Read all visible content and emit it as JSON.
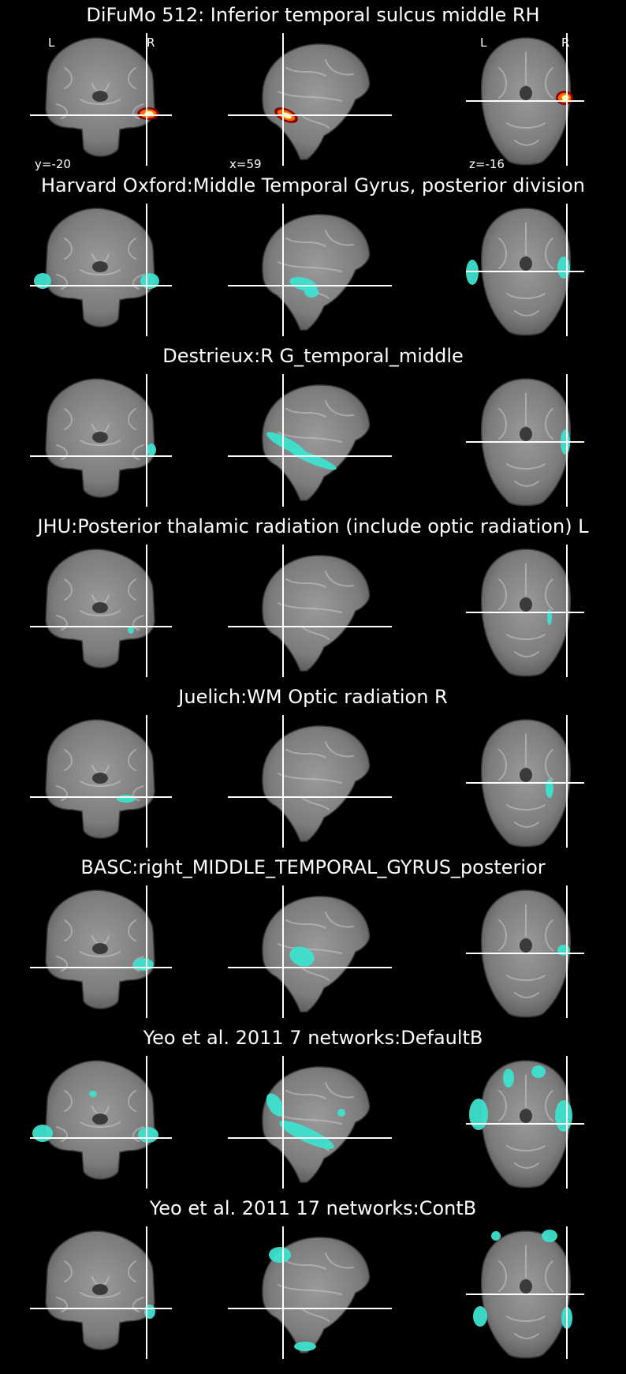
{
  "figure": {
    "panels": [
      {
        "title": "DiFuMo 512: Inferior temporal sulcus middle RH",
        "colormap": "hot",
        "orientation_left": "L",
        "orientation_right": "R",
        "coords": {
          "coronal": "y=-20",
          "sagittal": "x=59",
          "axial": "z=-16"
        }
      },
      {
        "title": "Harvard Oxford:Middle Temporal Gyrus, posterior division",
        "colormap": "cyan"
      },
      {
        "title": "Destrieux:R G_temporal_middle",
        "colormap": "cyan"
      },
      {
        "title": "JHU:Posterior thalamic radiation (include optic radiation) L",
        "colormap": "cyan"
      },
      {
        "title": "Juelich:WM Optic radiation R",
        "colormap": "cyan"
      },
      {
        "title": "BASC:right_MIDDLE_TEMPORAL_GYRUS_posterior",
        "colormap": "cyan"
      },
      {
        "title": "Yeo et al. 2011 7 networks:DefaultB",
        "colormap": "cyan"
      },
      {
        "title": "Yeo et al. 2011 17 networks:ContB",
        "colormap": "cyan"
      }
    ],
    "colors": {
      "background": "#000000",
      "crosshair": "#ffffff",
      "overlay_cyan": "#3ee0cf",
      "overlay_hot_edge": "#8b0000",
      "overlay_hot_mid": "#ff6a00",
      "overlay_hot_core": "#ffffaa"
    }
  }
}
